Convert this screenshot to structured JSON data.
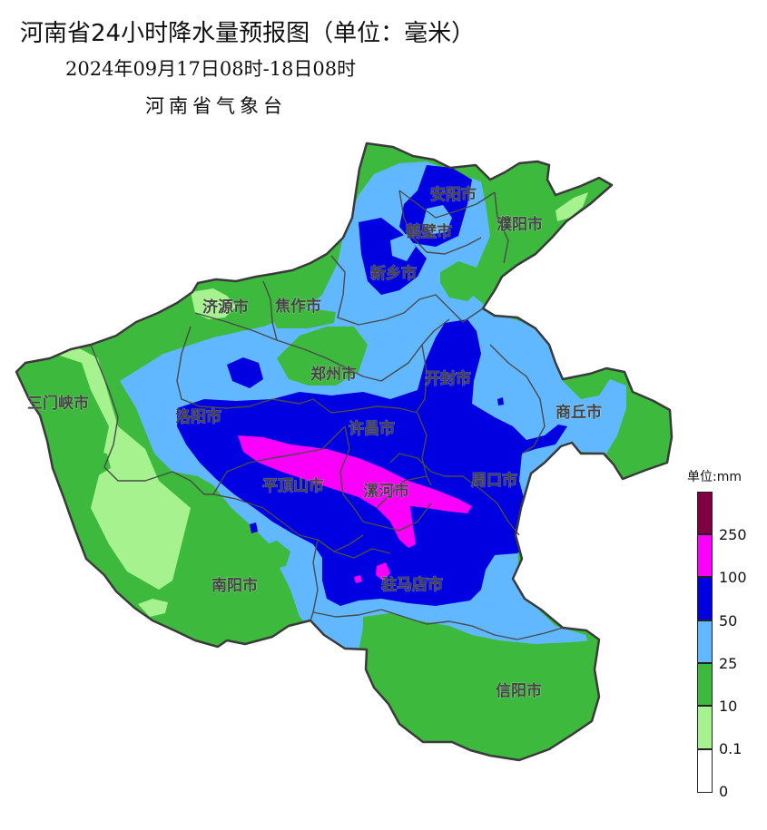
{
  "header": {
    "title": "河南省24小时降水量预报图（单位：毫米）",
    "subtitle": "2024年09月17日08时-18日08时",
    "agency": "河南省气象台"
  },
  "cities": {
    "anyang": "安阳市",
    "hebi": "鹤壁市",
    "puyang": "濮阳市",
    "xinxiang": "新乡市",
    "jiyuan": "济源市",
    "jiaozuo": "焦作市",
    "zhengzhou": "郑州市",
    "kaifeng": "开封市",
    "sanmenxia": "三门峡市",
    "luoyang": "洛阳市",
    "xuchang": "许昌市",
    "shangqiu": "商丘市",
    "pingdingshan": "平顶山市",
    "luohe": "漯河市",
    "zhoukou": "周口市",
    "nanyang": "南阳市",
    "zhumadian": "驻马店市",
    "xinyang": "信阳市"
  },
  "legend": {
    "title": "单位:mm",
    "classes": [
      {
        "label": "0",
        "color": "#ffffff"
      },
      {
        "label": "0.1",
        "color": "#a6f28f"
      },
      {
        "label": "10",
        "color": "#3dba3d"
      },
      {
        "label": "25",
        "color": "#61b8ff"
      },
      {
        "label": "50",
        "color": "#0000e1"
      },
      {
        "label": "100",
        "color": "#fa00fa"
      },
      {
        "label": "250",
        "color": "#800040"
      }
    ]
  }
}
